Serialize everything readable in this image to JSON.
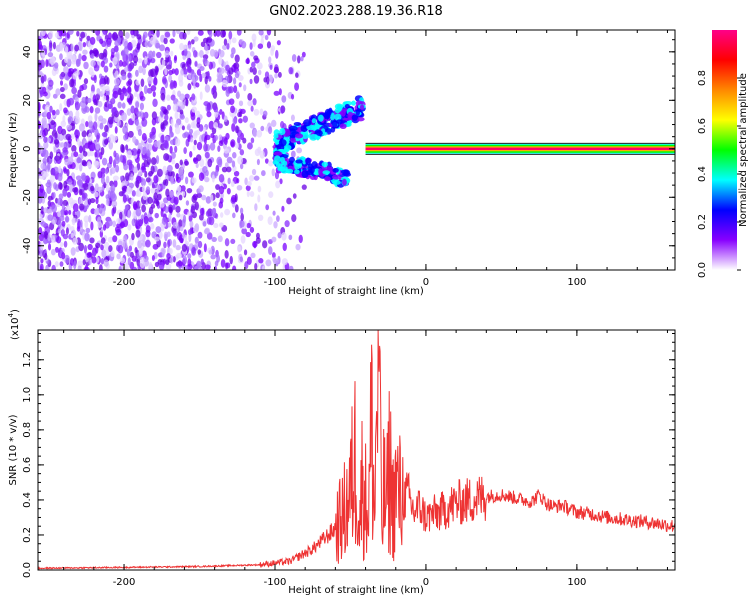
{
  "title": "GN02.2023.288.19.36.R18",
  "chart_data": [
    {
      "type": "heatmap",
      "xlabel": "Height of straight line (km)",
      "ylabel": "Frequency (Hz)",
      "xlim": [
        -257,
        165
      ],
      "ylim": [
        -50,
        49
      ],
      "xticks": [
        -200,
        -100,
        0,
        100
      ],
      "xtick_labels": [
        "-200",
        "-100",
        "0",
        "100"
      ],
      "yticks": [
        -40,
        -20,
        0,
        20,
        40
      ],
      "ytick_labels": [
        "-40",
        "-20",
        "0",
        "20",
        "40"
      ],
      "colorbar": {
        "label": "Normalized spectral amplitude",
        "range": [
          0,
          1
        ],
        "ticks": [
          0.0,
          0.2,
          0.4,
          0.6,
          0.8
        ],
        "tick_labels": [
          "0.0",
          "0.2",
          "0.4",
          "0.6",
          "0.8"
        ],
        "colors": [
          "#ffffff",
          "#8800ff",
          "#0000ff",
          "#00ffff",
          "#00ff00",
          "#ffff00",
          "#ff8800",
          "#ff0000",
          "#ff0088"
        ]
      },
      "features": {
        "carrier_line_frequency_hz": 0,
        "carrier_line_start_km": -40,
        "scatter_region_x_km": [
          -257,
          -90
        ],
        "branch_upper_start": {
          "x": -100,
          "y": 2
        },
        "branch_upper_end": {
          "x": -42,
          "y": 17
        },
        "branch_lower_start": {
          "x": -100,
          "y": -5
        },
        "branch_lower_end": {
          "x": -52,
          "y": -12
        }
      }
    },
    {
      "type": "line",
      "xlabel": "Height of straight line (km)",
      "ylabel": "SNR (10 * v/v)",
      "y_multiplier_label": "(x10",
      "y_multiplier_exp": "4",
      "xlim": [
        -257,
        165
      ],
      "ylim": [
        0,
        1.37
      ],
      "xticks": [
        -200,
        -100,
        0,
        100
      ],
      "xtick_labels": [
        "-200",
        "-100",
        "0",
        "100"
      ],
      "yticks": [
        0.0,
        0.2,
        0.4,
        0.6,
        0.8,
        1.0,
        1.2
      ],
      "ytick_labels": [
        "0.0",
        "0.2",
        "0.4",
        "0.6",
        "0.8",
        "1.0",
        "1.2"
      ],
      "color": "#ee3333",
      "x": [
        -257,
        -200,
        -150,
        -110,
        -90,
        -75,
        -62,
        -55,
        -50,
        -46,
        -44,
        -42,
        -40,
        -38,
        -36,
        -34,
        -32,
        -31,
        -30,
        -29,
        -28,
        -26,
        -24,
        -22,
        -20,
        -16,
        -12,
        -8,
        -4,
        0,
        5,
        10,
        15,
        20,
        30,
        40,
        50,
        55,
        60,
        65,
        70,
        75,
        80,
        85,
        90,
        95,
        100,
        110,
        120,
        130,
        140,
        150,
        165
      ],
      "y": [
        0.01,
        0.015,
        0.02,
        0.03,
        0.05,
        0.12,
        0.22,
        0.3,
        0.45,
        0.7,
        0.25,
        0.55,
        0.4,
        0.35,
        0.85,
        0.3,
        1.2,
        1.37,
        0.5,
        0.2,
        0.45,
        0.38,
        0.62,
        0.35,
        0.47,
        0.4,
        0.43,
        0.33,
        0.36,
        0.3,
        0.32,
        0.33,
        0.36,
        0.38,
        0.4,
        0.42,
        0.43,
        0.42,
        0.41,
        0.4,
        0.39,
        0.43,
        0.38,
        0.36,
        0.37,
        0.35,
        0.33,
        0.32,
        0.3,
        0.29,
        0.28,
        0.27,
        0.25
      ]
    }
  ]
}
